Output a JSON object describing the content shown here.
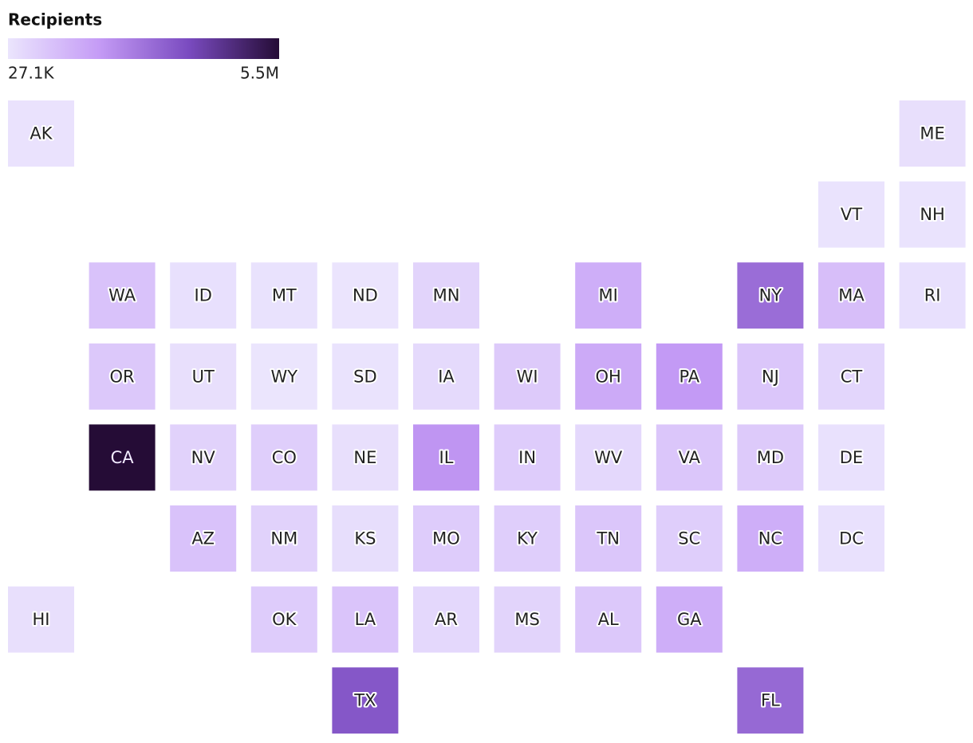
{
  "legend": {
    "title": "Recipients",
    "min": {
      "value": 27100,
      "label": "27.1K"
    },
    "max": {
      "value": 5500000,
      "label": "5.5M"
    },
    "colors": [
      "#ebe5fd",
      "#c59cf6",
      "#7a4bc0",
      "#250c36"
    ]
  },
  "states": [
    {
      "label": "AK",
      "value": 90000
    },
    {
      "label": "ME",
      "value": 180000
    },
    {
      "label": "VT",
      "value": 70000
    },
    {
      "label": "NH",
      "value": 80000
    },
    {
      "label": "WA",
      "value": 900000
    },
    {
      "label": "ID",
      "value": 150000
    },
    {
      "label": "MT",
      "value": 100000
    },
    {
      "label": "ND",
      "value": 50000
    },
    {
      "label": "MN",
      "value": 450000
    },
    {
      "label": "MI",
      "value": 1400000
    },
    {
      "label": "NY",
      "value": 2900000
    },
    {
      "label": "MA",
      "value": 1000000
    },
    {
      "label": "RI",
      "value": 150000
    },
    {
      "label": "OR",
      "value": 750000
    },
    {
      "label": "UT",
      "value": 180000
    },
    {
      "label": "WY",
      "value": 27100
    },
    {
      "label": "SD",
      "value": 80000
    },
    {
      "label": "IA",
      "value": 300000
    },
    {
      "label": "WI",
      "value": 700000
    },
    {
      "label": "OH",
      "value": 1500000
    },
    {
      "label": "PA",
      "value": 1900000
    },
    {
      "label": "NJ",
      "value": 800000
    },
    {
      "label": "CT",
      "value": 400000
    },
    {
      "label": "CA",
      "value": 5500000
    },
    {
      "label": "NV",
      "value": 500000
    },
    {
      "label": "CO",
      "value": 600000
    },
    {
      "label": "NE",
      "value": 170000
    },
    {
      "label": "IL",
      "value": 2000000
    },
    {
      "label": "IN",
      "value": 650000
    },
    {
      "label": "WV",
      "value": 350000
    },
    {
      "label": "VA",
      "value": 800000
    },
    {
      "label": "MD",
      "value": 700000
    },
    {
      "label": "DE",
      "value": 120000
    },
    {
      "label": "AZ",
      "value": 900000
    },
    {
      "label": "NM",
      "value": 500000
    },
    {
      "label": "KS",
      "value": 200000
    },
    {
      "label": "MO",
      "value": 650000
    },
    {
      "label": "KY",
      "value": 600000
    },
    {
      "label": "TN",
      "value": 800000
    },
    {
      "label": "SC",
      "value": 600000
    },
    {
      "label": "NC",
      "value": 1400000
    },
    {
      "label": "DC",
      "value": 130000
    },
    {
      "label": "HI",
      "value": 180000
    },
    {
      "label": "OK",
      "value": 650000
    },
    {
      "label": "LA",
      "value": 850000
    },
    {
      "label": "AR",
      "value": 350000
    },
    {
      "label": "MS",
      "value": 450000
    },
    {
      "label": "AL",
      "value": 750000
    },
    {
      "label": "GA",
      "value": 1400000
    },
    {
      "label": "TX",
      "value": 3400000
    },
    {
      "label": "FL",
      "value": 3000000
    }
  ]
}
